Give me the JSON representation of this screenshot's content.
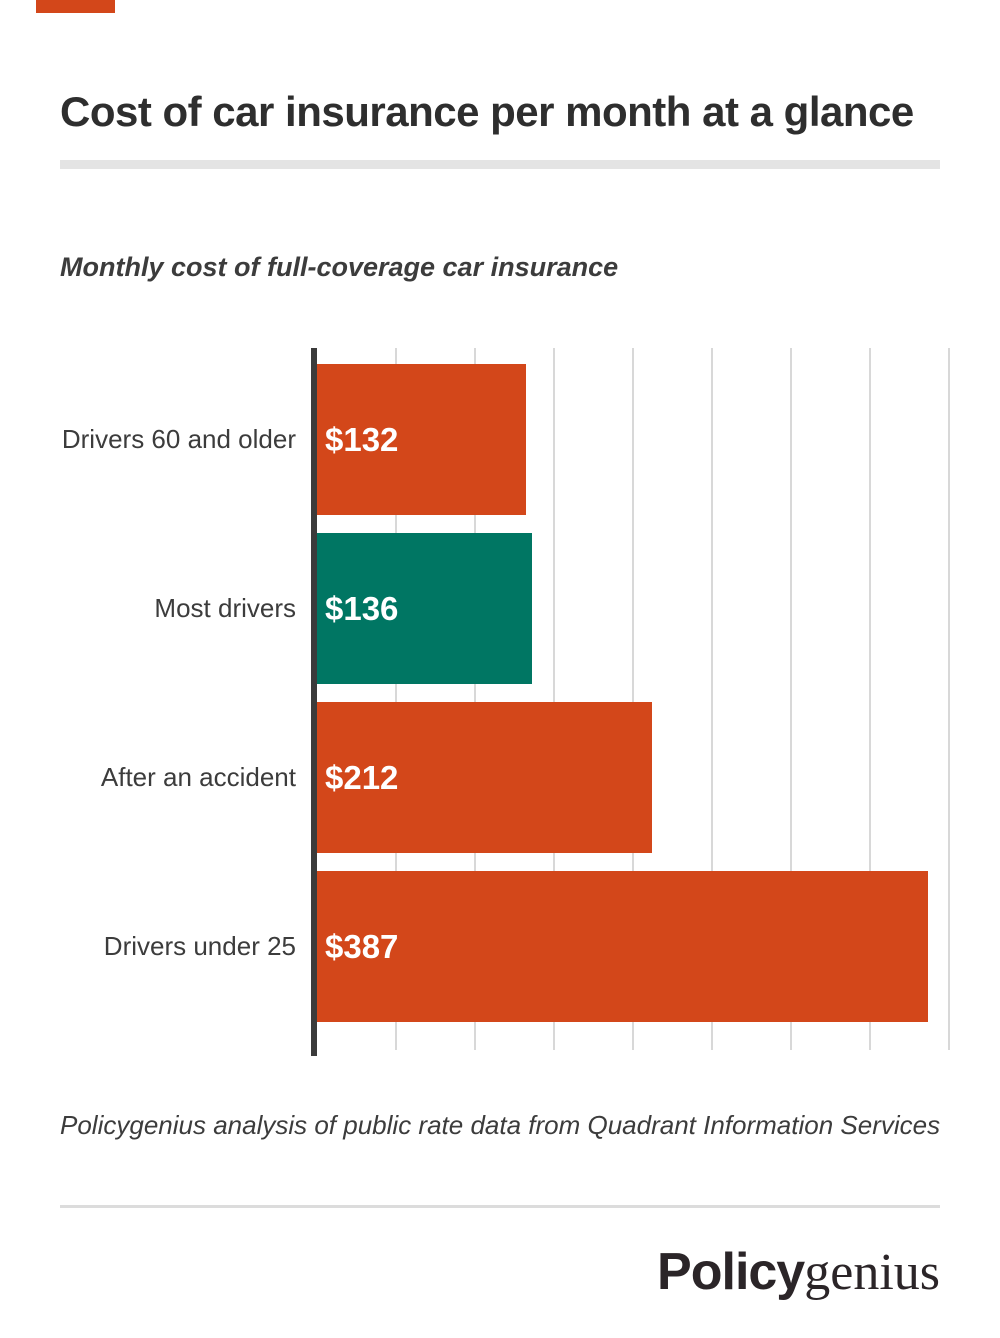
{
  "page": {
    "title": "Cost of car insurance per month at a glance",
    "subtitle": "Monthly cost of full-coverage car insurance",
    "source": "Policygenius analysis of public rate data from Quadrant Information Services",
    "logo": {
      "bold_part": "Policy",
      "serif_part": "genius"
    }
  },
  "colors": {
    "accent_orange": "#D3471A",
    "teal": "#007663",
    "axis": "#3B3B3B",
    "gridline": "#D8D8D8",
    "title_text": "#2E2E2E",
    "label_text": "#3C3C3C",
    "value_text": "#FFFFFF",
    "divider_thick": "#E4E4E4",
    "divider_thin": "#DCDCDC",
    "logo_text": "#2B2528"
  },
  "chart_data": {
    "type": "bar",
    "orientation": "horizontal",
    "title": "Monthly cost of full-coverage car insurance",
    "categories": [
      "Drivers 60 and older",
      "Most drivers",
      "After an accident",
      "Drivers under 25"
    ],
    "values": [
      132,
      136,
      212,
      387
    ],
    "value_labels": [
      "$132",
      "$136",
      "$212",
      "$387"
    ],
    "bar_colors": [
      "#D3471A",
      "#007663",
      "#D3471A",
      "#D3471A"
    ],
    "xlabel": "",
    "ylabel": "",
    "xlim": [
      0,
      400
    ],
    "gridline_interval": 50,
    "grid": true,
    "legend": false
  }
}
